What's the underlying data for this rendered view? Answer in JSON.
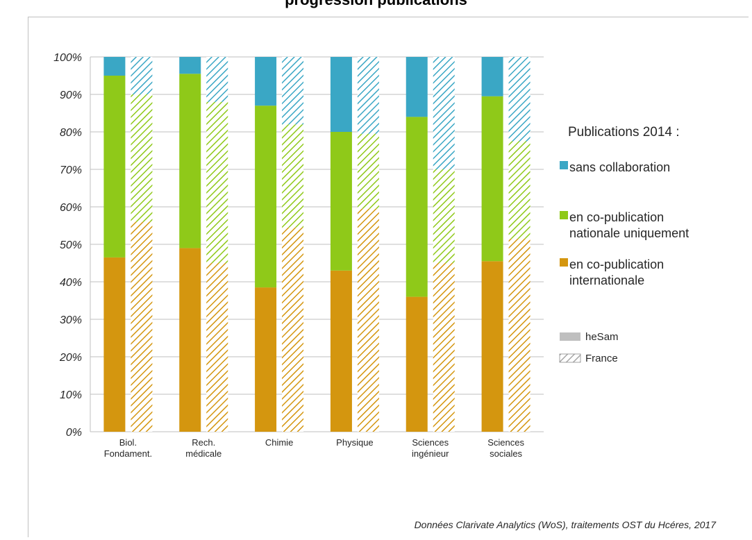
{
  "header": {
    "title": "progression publications"
  },
  "source_note": "Données Clarivate Analytics (WoS), traitements OST du Hcéres, 2017",
  "colors": {
    "international": "#d4960f",
    "national": "#8fc919",
    "sans": "#3aa7c5",
    "grid": "#bfbfbf"
  },
  "legend": {
    "title": "Publications 2014 :",
    "sans": "sans collaboration",
    "national_line1": "en co-publication",
    "national_line2": "nationale uniquement",
    "international_line1": "en co-publication",
    "international_line2": "internationale",
    "hesam": "heSam",
    "france": "France"
  },
  "chart_data": {
    "type": "bar",
    "stacked": true,
    "ylim": [
      0,
      100
    ],
    "yticks": [
      "0%",
      "10%",
      "20%",
      "30%",
      "40%",
      "50%",
      "60%",
      "70%",
      "80%",
      "90%",
      "100%"
    ],
    "categories": [
      [
        "Biol.",
        "Fondament."
      ],
      [
        "Rech.",
        "médicale"
      ],
      [
        "Chimie"
      ],
      [
        "Physique"
      ],
      [
        "Sciences",
        "ingénieur"
      ],
      [
        "Sciences",
        "sociales"
      ]
    ],
    "groups": [
      "heSam",
      "France"
    ],
    "series": [
      {
        "name": "en co-publication internationale",
        "heSam": [
          46.5,
          49,
          38.5,
          43,
          36,
          45.5
        ],
        "France": [
          56,
          45,
          54.5,
          59.5,
          45,
          51.5
        ]
      },
      {
        "name": "en co-publication nationale uniquement",
        "heSam": [
          48.5,
          46.5,
          48.5,
          37,
          48,
          44
        ],
        "France": [
          34,
          43,
          27.5,
          20,
          25,
          26
        ]
      },
      {
        "name": "sans collaboration",
        "heSam": [
          5,
          4.5,
          13,
          20,
          16,
          10.5
        ],
        "France": [
          10,
          12,
          18,
          20.5,
          30,
          22.5
        ]
      }
    ]
  }
}
